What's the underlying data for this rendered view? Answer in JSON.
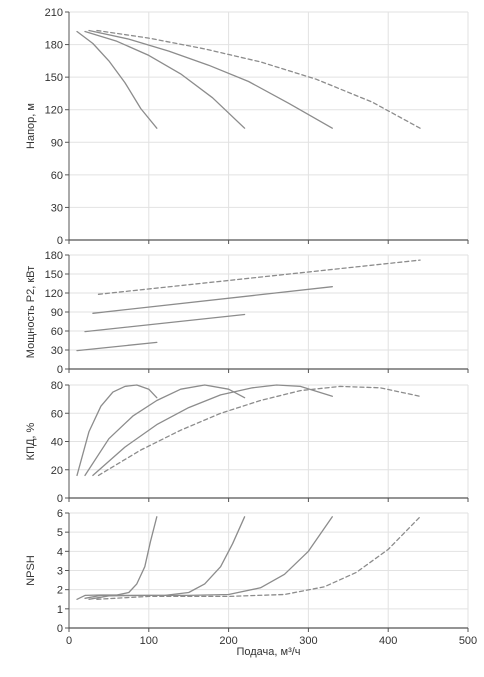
{
  "colors": {
    "line": "#8c8c8c",
    "grid": "#e2e2e2",
    "axis": "#555555",
    "text": "#333333"
  },
  "x_axis": {
    "label": "Подача, м³/ч",
    "ticks": [
      0,
      100,
      200,
      300,
      400,
      500
    ],
    "xlim": [
      0,
      500
    ]
  },
  "chart_data": [
    {
      "type": "line",
      "ylabel": "Напор, м",
      "ylim": [
        0,
        210
      ],
      "yticks": [
        0,
        30,
        60,
        90,
        120,
        150,
        180,
        210
      ],
      "grid": true,
      "series": [
        {
          "style": "solid",
          "x": [
            10,
            30,
            50,
            70,
            90,
            110
          ],
          "y": [
            192,
            181,
            165,
            145,
            121,
            103
          ]
        },
        {
          "style": "solid",
          "x": [
            20,
            60,
            100,
            140,
            180,
            220
          ],
          "y": [
            192,
            183,
            170,
            153,
            131,
            103
          ]
        },
        {
          "style": "solid",
          "x": [
            25,
            75,
            125,
            175,
            225,
            275,
            330
          ],
          "y": [
            193,
            185,
            174,
            161,
            146,
            126,
            103
          ]
        },
        {
          "style": "dashed",
          "x": [
            35,
            100,
            170,
            240,
            310,
            380,
            440
          ],
          "y": [
            193,
            186,
            176,
            164,
            148,
            127,
            103
          ]
        }
      ]
    },
    {
      "type": "line",
      "ylabel": "Мощность P2, кВт",
      "ylim": [
        0,
        180
      ],
      "yticks": [
        0,
        30,
        60,
        90,
        120,
        150,
        180
      ],
      "grid": true,
      "series": [
        {
          "style": "solid",
          "x": [
            10,
            110
          ],
          "y": [
            29,
            42
          ]
        },
        {
          "style": "solid",
          "x": [
            20,
            220
          ],
          "y": [
            59,
            86
          ]
        },
        {
          "style": "solid",
          "x": [
            30,
            330
          ],
          "y": [
            88,
            130
          ]
        },
        {
          "style": "dashed",
          "x": [
            37,
            440
          ],
          "y": [
            118,
            172
          ]
        }
      ]
    },
    {
      "type": "line",
      "ylabel": "КПД, %",
      "ylim": [
        0,
        80
      ],
      "yticks": [
        0,
        20,
        40,
        60,
        80
      ],
      "grid": true,
      "series": [
        {
          "style": "solid",
          "x": [
            10,
            25,
            40,
            55,
            70,
            85,
            100,
            110
          ],
          "y": [
            16,
            47,
            65,
            75,
            79,
            80,
            77,
            71
          ]
        },
        {
          "style": "solid",
          "x": [
            20,
            50,
            80,
            110,
            140,
            170,
            200,
            220
          ],
          "y": [
            16,
            42,
            58,
            69,
            77,
            80,
            77,
            71
          ]
        },
        {
          "style": "solid",
          "x": [
            30,
            70,
            110,
            150,
            190,
            230,
            260,
            290,
            330
          ],
          "y": [
            16,
            36,
            52,
            64,
            73,
            78,
            80,
            79,
            72
          ]
        },
        {
          "style": "dashed",
          "x": [
            37,
            90,
            140,
            190,
            240,
            290,
            340,
            390,
            440
          ],
          "y": [
            16,
            34,
            48,
            60,
            69,
            76,
            79,
            78,
            72
          ]
        }
      ]
    },
    {
      "type": "line",
      "ylabel": "NPSH",
      "ylim": [
        0,
        6
      ],
      "yticks": [
        0,
        1,
        2,
        3,
        4,
        5,
        6
      ],
      "grid": true,
      "series": [
        {
          "style": "solid",
          "x": [
            10,
            20,
            40,
            60,
            75,
            85,
            95,
            102,
            110
          ],
          "y": [
            1.5,
            1.7,
            1.72,
            1.72,
            1.85,
            2.3,
            3.2,
            4.5,
            5.8
          ]
        },
        {
          "style": "solid",
          "x": [
            20,
            40,
            80,
            120,
            150,
            170,
            190,
            205,
            220
          ],
          "y": [
            1.55,
            1.7,
            1.7,
            1.7,
            1.85,
            2.3,
            3.2,
            4.4,
            5.8
          ]
        },
        {
          "style": "solid",
          "x": [
            25,
            50,
            100,
            150,
            200,
            240,
            270,
            300,
            330
          ],
          "y": [
            1.5,
            1.68,
            1.7,
            1.7,
            1.75,
            2.1,
            2.8,
            4.0,
            5.8
          ]
        },
        {
          "style": "dashed",
          "x": [
            35,
            100,
            200,
            270,
            320,
            360,
            400,
            440
          ],
          "y": [
            1.5,
            1.65,
            1.65,
            1.75,
            2.15,
            2.9,
            4.1,
            5.8
          ]
        }
      ]
    }
  ]
}
